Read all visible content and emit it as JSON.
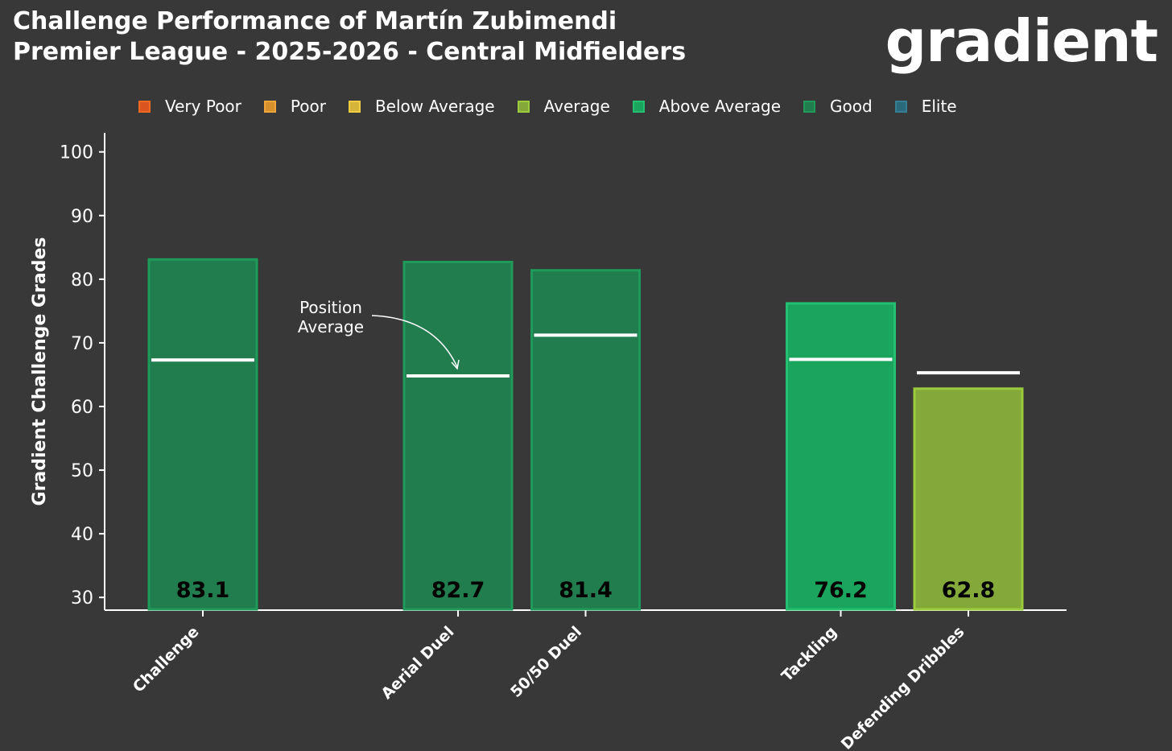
{
  "header": {
    "title_line1": "Challenge Performance of Martín Zubimendi",
    "title_line2": "Premier League - 2025-2026 - Central Midfielders",
    "logo_text": "gradient"
  },
  "legend": [
    {
      "label": "Very Poor",
      "color": "#d9541e",
      "border": "#f06a24"
    },
    {
      "label": "Poor",
      "color": "#d6902b",
      "border": "#f0a53a"
    },
    {
      "label": "Below Average",
      "color": "#d6b43a",
      "border": "#f0cc45"
    },
    {
      "label": "Average",
      "color": "#84a93a",
      "border": "#9ccb3c"
    },
    {
      "label": "Above Average",
      "color": "#1ba45e",
      "border": "#22c070"
    },
    {
      "label": "Good",
      "color": "#217c4e",
      "border": "#1e9a5a"
    },
    {
      "label": "Elite",
      "color": "#2b6a7c",
      "border": "#357f93"
    }
  ],
  "chart_data": {
    "type": "bar",
    "ylabel": "Gradient Challenge Grades",
    "ylim": [
      28,
      103
    ],
    "yticks": [
      30,
      40,
      50,
      60,
      70,
      80,
      90,
      100
    ],
    "categories": [
      "Challenge",
      "Aerial Duel",
      "50/50 Duel",
      "Tackling",
      "Defending Dribbles"
    ],
    "values": [
      83.1,
      82.7,
      81.4,
      76.2,
      62.8
    ],
    "value_labels": [
      "83.1",
      "82.7",
      "81.4",
      "76.2",
      "62.8"
    ],
    "position_average": [
      67.3,
      64.8,
      71.2,
      67.4,
      65.3
    ],
    "grades": [
      "Good",
      "Good",
      "Good",
      "Above Average",
      "Average"
    ],
    "annotation": {
      "line1": "Position",
      "line2": "Average"
    },
    "legend_position": "top",
    "grid": false
  }
}
